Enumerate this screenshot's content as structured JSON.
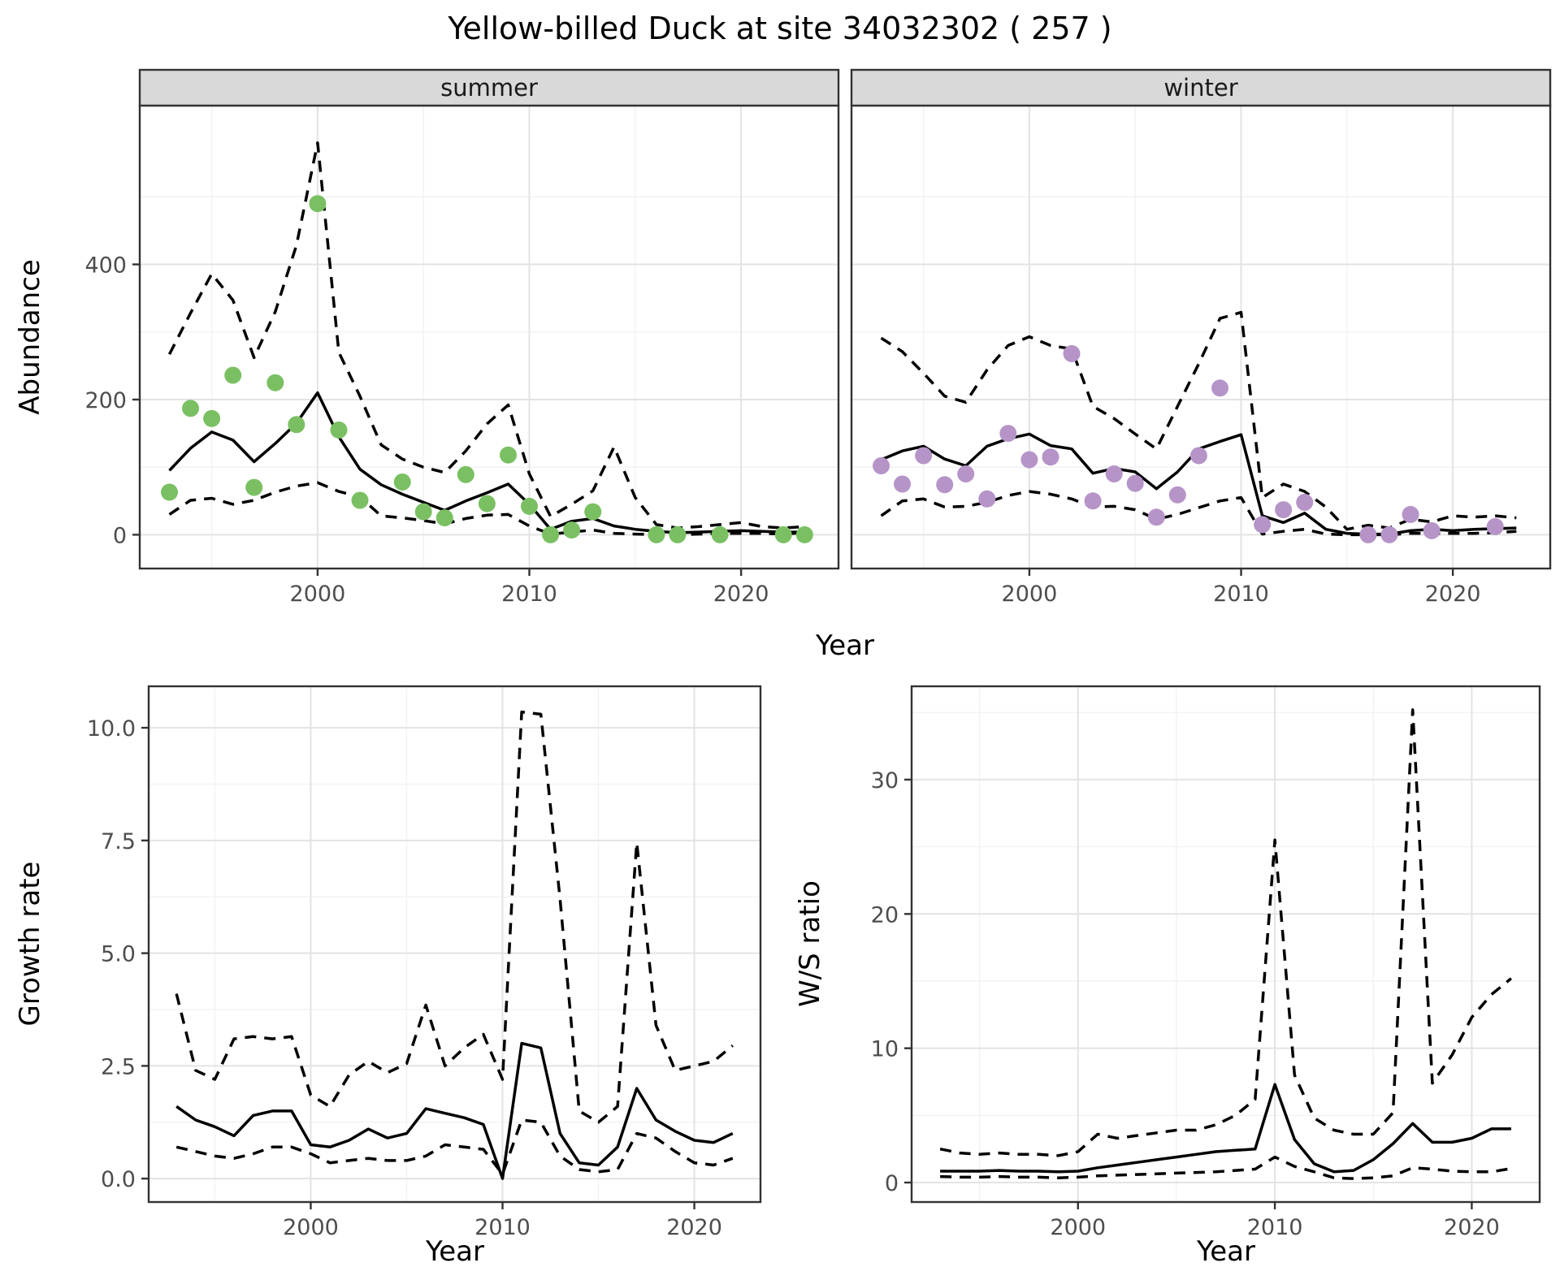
{
  "title": "Yellow-billed Duck at site 34032302 ( 257 )",
  "colors": {
    "summer_points": "#7ac063",
    "winter_points": "#b694c8",
    "line": "#000000",
    "strip_bg": "#d9d9d9",
    "strip_border": "#333333",
    "panel_border": "#333333",
    "grid_major": "#e3e3e3",
    "grid_minor": "#f1f1f1",
    "tick_color": "#333333",
    "axis_text": "#4d4d4d",
    "background": "#ffffff"
  },
  "axes": {
    "abundance_ylabel": "Abundance",
    "growth_ylabel": "Growth rate",
    "ws_ylabel": "W/S ratio",
    "xlabel": "Year"
  },
  "chart_data": [
    {
      "id": "abundance_summer",
      "type": "line",
      "facet_label": "summer",
      "xlabel": "Year",
      "ylabel": "Abundance",
      "xlim": [
        1991.6,
        2024.6
      ],
      "ylim": [
        -50,
        635
      ],
      "xticks": [
        2000,
        2010,
        2020
      ],
      "xtick_labels": [
        "2000",
        "2010",
        "2020"
      ],
      "xminor": [
        1995,
        2005,
        2015
      ],
      "yticks": [
        0,
        200,
        400
      ],
      "ytick_labels": [
        "0",
        "200",
        "400"
      ],
      "yminor": [
        100,
        300,
        500
      ],
      "legend": "off",
      "grid": "on",
      "x": [
        1993,
        1994,
        1995,
        1996,
        1997,
        1998,
        1999,
        2000,
        2001,
        2002,
        2003,
        2004,
        2005,
        2006,
        2007,
        2008,
        2009,
        2010,
        2011,
        2012,
        2013,
        2014,
        2015,
        2016,
        2017,
        2018,
        2019,
        2020,
        2021,
        2022,
        2023
      ],
      "series": [
        {
          "name": "median",
          "style": "solid",
          "values": [
            95,
            128,
            152,
            140,
            108,
            135,
            165,
            210,
            145,
            97,
            74,
            60,
            48,
            36,
            50,
            62,
            75,
            45,
            8,
            20,
            24,
            13,
            8,
            5,
            3,
            4,
            5,
            6,
            5,
            4,
            4
          ]
        },
        {
          "name": "lower_ci",
          "style": "dashed",
          "values": [
            30,
            51,
            54,
            45,
            51,
            63,
            72,
            77,
            64,
            56,
            28,
            25,
            21,
            16,
            24,
            29,
            30,
            13,
            1,
            4,
            7,
            2,
            1,
            0,
            0,
            1,
            2,
            2,
            2,
            1,
            3
          ]
        },
        {
          "name": "upper_ci",
          "style": "dashed",
          "values": [
            267,
            328,
            386,
            347,
            262,
            330,
            428,
            580,
            270,
            205,
            133,
            112,
            100,
            92,
            124,
            164,
            192,
            90,
            27,
            45,
            65,
            130,
            55,
            15,
            10,
            12,
            15,
            18,
            12,
            10,
            12
          ]
        }
      ],
      "points": {
        "name": "observed",
        "color_key": "summer_points",
        "x": [
          1993,
          1994,
          1995,
          1996,
          1997,
          1998,
          1999,
          2000,
          2001,
          2002,
          2004,
          2005,
          2006,
          2007,
          2008,
          2009,
          2010,
          2011,
          2012,
          2013,
          2016,
          2017,
          2019,
          2022,
          2023
        ],
        "y": [
          63,
          187,
          172,
          236,
          70,
          225,
          163,
          490,
          155,
          51,
          78,
          34,
          25,
          89,
          46,
          118,
          42,
          0,
          7,
          34,
          0,
          0,
          0,
          0,
          0
        ]
      }
    },
    {
      "id": "abundance_winter",
      "type": "line",
      "facet_label": "winter",
      "xlabel": "Year",
      "ylabel": "Abundance",
      "xlim": [
        1991.6,
        2024.6
      ],
      "ylim": [
        -50,
        635
      ],
      "xticks": [
        2000,
        2010,
        2020
      ],
      "xtick_labels": [
        "2000",
        "2010",
        "2020"
      ],
      "xminor": [
        1995,
        2005,
        2015
      ],
      "yticks": [
        0,
        200,
        400
      ],
      "ytick_labels": [
        "0",
        "200",
        "400"
      ],
      "yminor": [
        100,
        300,
        500
      ],
      "legend": "off",
      "grid": "on",
      "x": [
        1993,
        1994,
        1995,
        1996,
        1997,
        1998,
        1999,
        2000,
        2001,
        2002,
        2003,
        2004,
        2005,
        2006,
        2007,
        2008,
        2009,
        2010,
        2011,
        2012,
        2013,
        2014,
        2015,
        2016,
        2017,
        2018,
        2019,
        2020,
        2021,
        2022,
        2023
      ],
      "series": [
        {
          "name": "median",
          "style": "solid",
          "values": [
            111,
            124,
            131,
            112,
            102,
            131,
            142,
            149,
            132,
            127,
            91,
            98,
            93,
            68,
            93,
            127,
            138,
            148,
            28,
            18,
            32,
            8,
            2,
            1,
            1,
            6,
            8,
            6,
            8,
            9,
            10
          ]
        },
        {
          "name": "lower_ci",
          "style": "dashed",
          "values": [
            28,
            50,
            53,
            41,
            42,
            48,
            58,
            64,
            60,
            53,
            41,
            42,
            37,
            23,
            30,
            40,
            50,
            55,
            1,
            5,
            8,
            1,
            0,
            0,
            0,
            2,
            2,
            2,
            2,
            3,
            5
          ]
        },
        {
          "name": "upper_ci",
          "style": "dashed",
          "values": [
            291,
            271,
            239,
            205,
            196,
            244,
            280,
            293,
            280,
            275,
            190,
            172,
            149,
            127,
            190,
            253,
            320,
            329,
            55,
            75,
            64,
            41,
            8,
            14,
            10,
            23,
            19,
            28,
            26,
            28,
            25
          ]
        }
      ],
      "points": {
        "name": "observed",
        "color_key": "winter_points",
        "x": [
          1993,
          1994,
          1995,
          1996,
          1997,
          1998,
          1999,
          2000,
          2001,
          2002,
          2003,
          2004,
          2005,
          2006,
          2007,
          2008,
          2009,
          2011,
          2012,
          2013,
          2016,
          2017,
          2018,
          2019,
          2022
        ],
        "y": [
          102,
          75,
          117,
          74,
          90,
          53,
          150,
          111,
          115,
          268,
          50,
          90,
          76,
          26,
          59,
          117,
          217,
          15,
          37,
          48,
          0,
          0,
          30,
          6,
          12
        ]
      }
    },
    {
      "id": "growth_rate",
      "type": "line",
      "facet_label": "",
      "xlabel": "Year",
      "ylabel": "Growth rate",
      "xlim": [
        1991.55,
        2023.45
      ],
      "ylim": [
        -0.52,
        10.92
      ],
      "xticks": [
        2000,
        2010,
        2020
      ],
      "xtick_labels": [
        "2000",
        "2010",
        "2020"
      ],
      "xminor": [
        1995,
        2005,
        2015
      ],
      "yticks": [
        0,
        2.5,
        5,
        7.5,
        10
      ],
      "ytick_labels": [
        "0.0",
        "2.5",
        "5.0",
        "7.5",
        "10.0"
      ],
      "yminor": [
        1.25,
        3.75,
        6.25,
        8.75
      ],
      "legend": "off",
      "grid": "on",
      "x": [
        1993,
        1994,
        1995,
        1996,
        1997,
        1998,
        1999,
        2000,
        2001,
        2002,
        2003,
        2004,
        2005,
        2006,
        2007,
        2008,
        2009,
        2010,
        2011,
        2012,
        2013,
        2014,
        2015,
        2016,
        2017,
        2018,
        2019,
        2020,
        2021,
        2022
      ],
      "series": [
        {
          "name": "median",
          "style": "solid",
          "values": [
            1.6,
            1.3,
            1.15,
            0.95,
            1.4,
            1.5,
            1.5,
            0.75,
            0.7,
            0.85,
            1.1,
            0.9,
            1.0,
            1.55,
            1.45,
            1.35,
            1.2,
            0.0,
            3.0,
            2.9,
            1.0,
            0.35,
            0.3,
            0.7,
            2.0,
            1.3,
            1.05,
            0.85,
            0.8,
            1.0
          ]
        },
        {
          "name": "lower_ci",
          "style": "dashed",
          "values": [
            0.7,
            0.6,
            0.5,
            0.45,
            0.55,
            0.7,
            0.7,
            0.55,
            0.35,
            0.4,
            0.45,
            0.4,
            0.4,
            0.5,
            0.75,
            0.7,
            0.65,
            0.1,
            1.3,
            1.25,
            0.5,
            0.2,
            0.15,
            0.2,
            1.0,
            0.9,
            0.6,
            0.35,
            0.3,
            0.45
          ]
        },
        {
          "name": "upper_ci",
          "style": "dashed",
          "values": [
            4.1,
            2.4,
            2.2,
            3.1,
            3.15,
            3.1,
            3.15,
            1.85,
            1.6,
            2.3,
            2.6,
            2.35,
            2.55,
            3.85,
            2.5,
            2.9,
            3.2,
            2.2,
            10.35,
            10.3,
            6.2,
            1.5,
            1.25,
            1.6,
            7.45,
            3.4,
            2.4,
            2.5,
            2.6,
            2.95
          ]
        }
      ],
      "points": null
    },
    {
      "id": "ws_ratio",
      "type": "line",
      "facet_label": "",
      "xlabel": "Year",
      "ylabel": "W/S ratio",
      "xlim": [
        1991.55,
        2023.45
      ],
      "ylim": [
        -1.45,
        36.95
      ],
      "xticks": [
        2000,
        2010,
        2020
      ],
      "xtick_labels": [
        "2000",
        "2010",
        "2020"
      ],
      "xminor": [
        1995,
        2005,
        2015
      ],
      "yticks": [
        0,
        10,
        20,
        30
      ],
      "ytick_labels": [
        "0",
        "10",
        "20",
        "30"
      ],
      "yminor": [
        5,
        15,
        25,
        35
      ],
      "legend": "off",
      "grid": "on",
      "x": [
        1993,
        1994,
        1995,
        1996,
        1997,
        1998,
        1999,
        2000,
        2001,
        2002,
        2003,
        2004,
        2005,
        2006,
        2007,
        2008,
        2009,
        2010,
        2011,
        2012,
        2013,
        2014,
        2015,
        2016,
        2017,
        2018,
        2019,
        2020,
        2021,
        2022
      ],
      "series": [
        {
          "name": "median",
          "style": "solid",
          "values": [
            0.85,
            0.85,
            0.85,
            0.9,
            0.85,
            0.85,
            0.8,
            0.85,
            1.1,
            1.3,
            1.5,
            1.7,
            1.9,
            2.1,
            2.3,
            2.4,
            2.5,
            7.3,
            3.2,
            1.4,
            0.8,
            0.9,
            1.7,
            2.9,
            4.4,
            3.0,
            3.0,
            3.3,
            4.0,
            4.0
          ]
        },
        {
          "name": "lower_ci",
          "style": "dashed",
          "values": [
            0.45,
            0.4,
            0.4,
            0.45,
            0.4,
            0.4,
            0.35,
            0.4,
            0.5,
            0.55,
            0.6,
            0.65,
            0.7,
            0.75,
            0.8,
            0.9,
            1.0,
            1.9,
            1.2,
            0.8,
            0.35,
            0.3,
            0.35,
            0.5,
            1.1,
            1.0,
            0.85,
            0.8,
            0.8,
            1.05
          ]
        },
        {
          "name": "upper_ci",
          "style": "dashed",
          "values": [
            2.5,
            2.2,
            2.1,
            2.2,
            2.1,
            2.1,
            2.0,
            2.3,
            3.6,
            3.3,
            3.5,
            3.7,
            3.9,
            3.9,
            4.3,
            5.0,
            6.2,
            25.5,
            8.0,
            4.8,
            3.9,
            3.6,
            3.6,
            5.2,
            35.2,
            7.4,
            9.5,
            12.3,
            14.0,
            15.2
          ]
        }
      ],
      "points": null
    }
  ]
}
